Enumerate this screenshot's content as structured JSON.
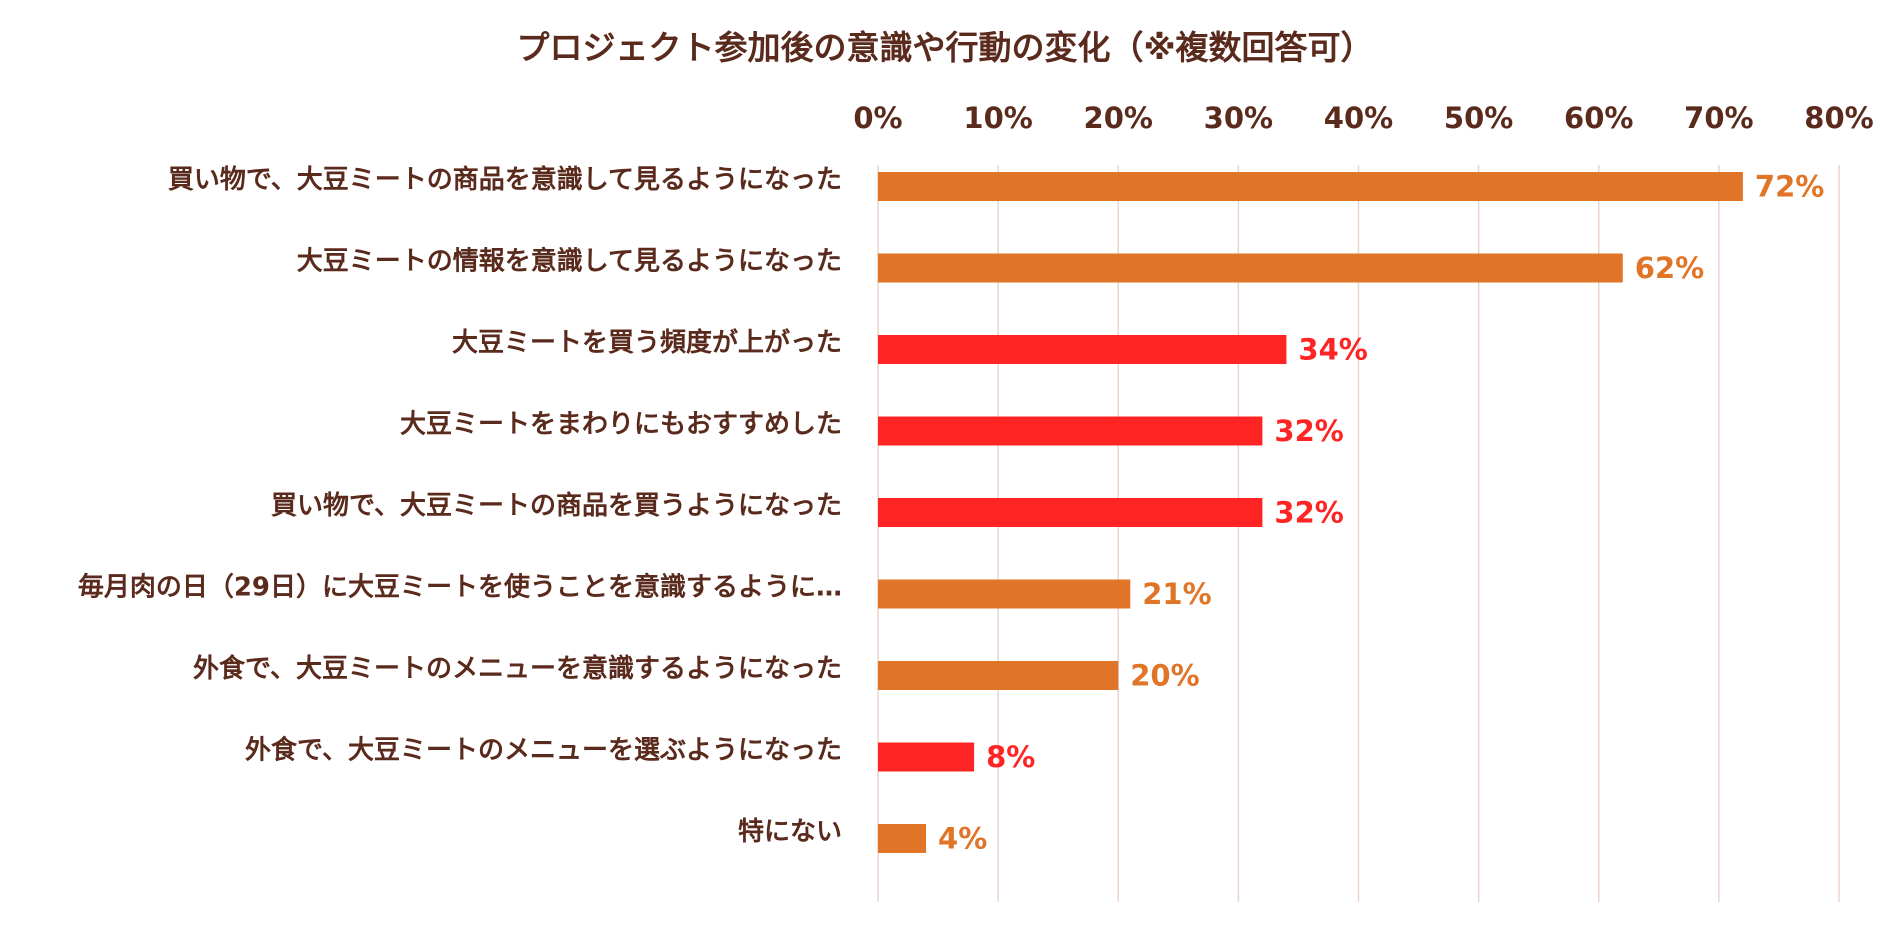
{
  "colors": {
    "title_text": "#5a2a1c",
    "axis_text": "#5a2a1c",
    "category_text": "#5a2a1c",
    "gridline": "#e9d5cb",
    "bar_orange": "#e07528",
    "bar_red": "#ff2424",
    "background": "#ffffff"
  },
  "chart_data": {
    "type": "bar",
    "orientation": "horizontal",
    "title": "プロジェクト参加後の意識や行動の変化（※複数回答可）",
    "xlabel": "",
    "ylabel": "",
    "xlim": [
      0,
      80
    ],
    "xticks": [
      0,
      10,
      20,
      30,
      40,
      50,
      60,
      70,
      80
    ],
    "xtick_labels": [
      "0%",
      "10%",
      "20%",
      "30%",
      "40%",
      "50%",
      "60%",
      "70%",
      "80%"
    ],
    "grid": true,
    "axis_position": "top",
    "legend": "none",
    "categories": [
      "買い物で、大豆ミートの商品を意識して見るようになった",
      "大豆ミートの情報を意識して見るようになった",
      "大豆ミートを買う頻度が上がった",
      "大豆ミートをまわりにもおすすめした",
      "買い物で、大豆ミートの商品を買うようになった",
      "毎月肉の日（29日）に大豆ミートを使うことを意識するように…",
      "外食で、大豆ミートのメニューを意識するようになった",
      "外食で、大豆ミートのメニューを選ぶようになった",
      "特にない"
    ],
    "values": [
      72,
      62,
      34,
      32,
      32,
      21,
      20,
      8,
      4
    ],
    "value_labels": [
      "72%",
      "62%",
      "34%",
      "32%",
      "32%",
      "21%",
      "20%",
      "8%",
      "4%"
    ],
    "bar_colors": [
      "orange",
      "orange",
      "red",
      "red",
      "red",
      "orange",
      "orange",
      "red",
      "orange"
    ]
  }
}
